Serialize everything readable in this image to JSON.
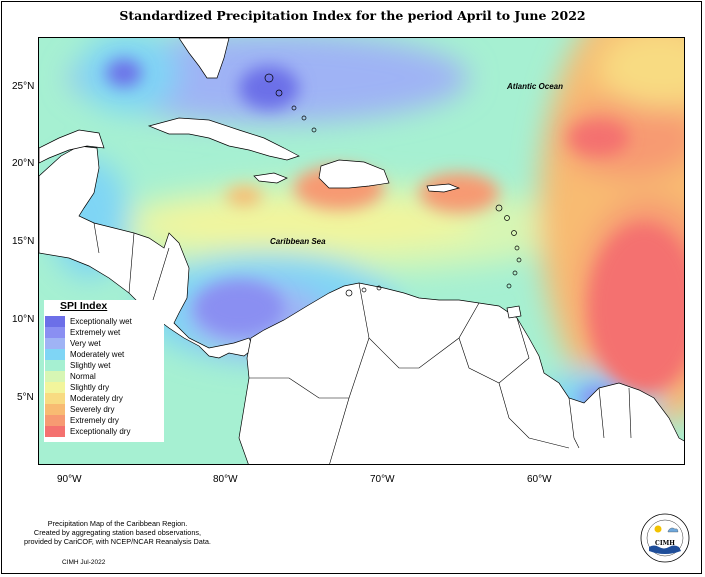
{
  "title": "Standardized Precipitation Index for the period April to June 2022",
  "labels": {
    "atlantic": "Atlantic Ocean",
    "caribbean": "Caribbean Sea"
  },
  "axes": {
    "lat": [
      "25°N",
      "20°N",
      "15°N",
      "10°N",
      "5°N"
    ],
    "lon": [
      "90°W",
      "80°W",
      "70°W",
      "60°W"
    ]
  },
  "legend": {
    "title": "SPI Index",
    "items": [
      {
        "label": "Exceptionally wet",
        "color": "#6c6fe8"
      },
      {
        "label": "Extremely wet",
        "color": "#8a8ff2"
      },
      {
        "label": "Very wet",
        "color": "#9fb3f5"
      },
      {
        "label": "Moderately wet",
        "color": "#7fd5f5"
      },
      {
        "label": "Slightly wet",
        "color": "#a6f0d2"
      },
      {
        "label": "Normal",
        "color": "#d7f6b4"
      },
      {
        "label": "Slightly dry",
        "color": "#f2f59c"
      },
      {
        "label": "Moderately dry",
        "color": "#f8db82"
      },
      {
        "label": "Severely dry",
        "color": "#f8bb72"
      },
      {
        "label": "Extremely dry",
        "color": "#f79a72"
      },
      {
        "label": "Exceptionally dry",
        "color": "#f4716f"
      }
    ]
  },
  "caption": {
    "line1": "Precipitation Map of the Caribbean Region.",
    "line2": "Created by aggregating station based observations,",
    "line3": "provided by CariCOF, with NCEP/NCAR Reanalysis Data."
  },
  "footer": "CIMH Jul-2022",
  "logo": {
    "text": "CIMH"
  }
}
